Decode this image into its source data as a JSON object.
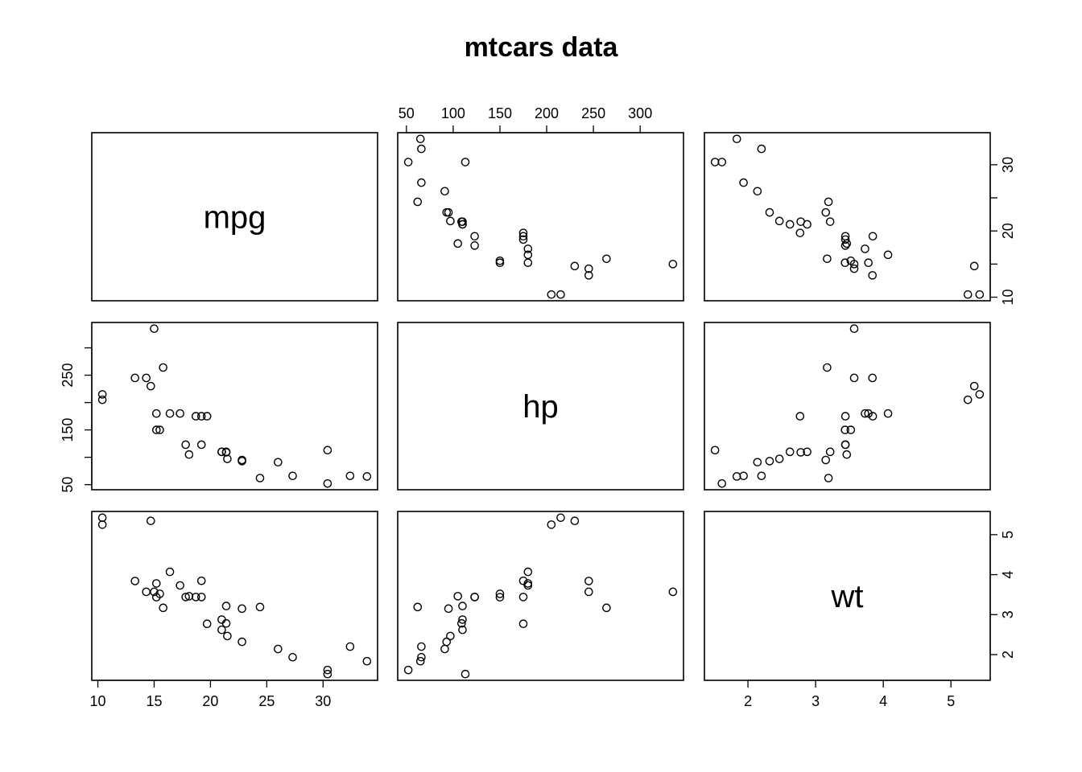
{
  "chart_data": {
    "type": "scatter",
    "title": "mtcars data",
    "grid": false,
    "variables": [
      "mpg",
      "hp",
      "wt"
    ],
    "axis_ticks": {
      "mpg": [
        10,
        15,
        20,
        25,
        30
      ],
      "hp": [
        50,
        150,
        250,
        100,
        200,
        300
      ],
      "wt": [
        2,
        3,
        4,
        5
      ]
    },
    "tick_labels": {
      "mpg_bottom": [
        "10",
        "15",
        "20",
        "25",
        "30"
      ],
      "mpg_right": [
        "10",
        "20",
        "30"
      ],
      "hp_top": [
        "50",
        "100",
        "150",
        "200",
        "250",
        "300"
      ],
      "hp_left": [
        "50",
        "150",
        "250"
      ],
      "wt_bottom": [
        "2",
        "3",
        "4",
        "5"
      ],
      "wt_right": [
        "2",
        "3",
        "4",
        "5"
      ]
    },
    "ranges": {
      "mpg": [
        10.4,
        33.9
      ],
      "hp": [
        52,
        335
      ],
      "wt": [
        1.513,
        5.424
      ]
    },
    "observations": [
      {
        "mpg": 21.0,
        "hp": 110,
        "wt": 2.62
      },
      {
        "mpg": 21.0,
        "hp": 110,
        "wt": 2.875
      },
      {
        "mpg": 22.8,
        "hp": 93,
        "wt": 2.32
      },
      {
        "mpg": 21.4,
        "hp": 110,
        "wt": 3.215
      },
      {
        "mpg": 18.7,
        "hp": 175,
        "wt": 3.44
      },
      {
        "mpg": 18.1,
        "hp": 105,
        "wt": 3.46
      },
      {
        "mpg": 14.3,
        "hp": 245,
        "wt": 3.57
      },
      {
        "mpg": 24.4,
        "hp": 62,
        "wt": 3.19
      },
      {
        "mpg": 22.8,
        "hp": 95,
        "wt": 3.15
      },
      {
        "mpg": 19.2,
        "hp": 123,
        "wt": 3.44
      },
      {
        "mpg": 17.8,
        "hp": 123,
        "wt": 3.44
      },
      {
        "mpg": 16.4,
        "hp": 180,
        "wt": 4.07
      },
      {
        "mpg": 17.3,
        "hp": 180,
        "wt": 3.73
      },
      {
        "mpg": 15.2,
        "hp": 180,
        "wt": 3.78
      },
      {
        "mpg": 10.4,
        "hp": 205,
        "wt": 5.25
      },
      {
        "mpg": 10.4,
        "hp": 215,
        "wt": 5.424
      },
      {
        "mpg": 14.7,
        "hp": 230,
        "wt": 5.345
      },
      {
        "mpg": 32.4,
        "hp": 66,
        "wt": 2.2
      },
      {
        "mpg": 30.4,
        "hp": 52,
        "wt": 1.615
      },
      {
        "mpg": 33.9,
        "hp": 65,
        "wt": 1.835
      },
      {
        "mpg": 21.5,
        "hp": 97,
        "wt": 2.465
      },
      {
        "mpg": 15.5,
        "hp": 150,
        "wt": 3.52
      },
      {
        "mpg": 15.2,
        "hp": 150,
        "wt": 3.435
      },
      {
        "mpg": 13.3,
        "hp": 245,
        "wt": 3.84
      },
      {
        "mpg": 19.2,
        "hp": 175,
        "wt": 3.845
      },
      {
        "mpg": 27.3,
        "hp": 66,
        "wt": 1.935
      },
      {
        "mpg": 26.0,
        "hp": 91,
        "wt": 2.14
      },
      {
        "mpg": 30.4,
        "hp": 113,
        "wt": 1.513
      },
      {
        "mpg": 15.8,
        "hp": 264,
        "wt": 3.17
      },
      {
        "mpg": 19.7,
        "hp": 175,
        "wt": 2.77
      },
      {
        "mpg": 15.0,
        "hp": 335,
        "wt": 3.57
      },
      {
        "mpg": 21.4,
        "hp": 109,
        "wt": 2.78
      }
    ]
  }
}
